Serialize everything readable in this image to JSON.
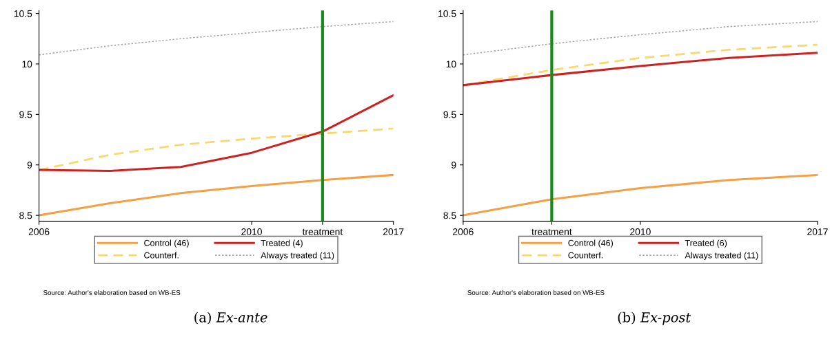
{
  "chart_data": [
    {
      "type": "line",
      "categories": [
        "2006",
        null,
        null,
        "2010",
        "treatment",
        "2017"
      ],
      "ylim": [
        8.44,
        10.53
      ],
      "yticks": [
        8.5,
        9,
        9.5,
        10,
        10.5
      ],
      "grid": false,
      "legend": "bottom",
      "ref_lines": [
        {
          "axis": "x",
          "value": "treatment",
          "label": null,
          "color": "#1a8a1a"
        }
      ],
      "series": [
        {
          "name": "Control (46)",
          "color": "#f5a045",
          "line_style": "solid",
          "values": [
            8.5,
            8.62,
            8.72,
            8.79,
            8.85,
            8.9
          ]
        },
        {
          "name": "Counterf.",
          "color": "#f9d870",
          "line_style": "dashed",
          "values": [
            8.95,
            9.1,
            9.2,
            9.26,
            9.31,
            9.36
          ]
        },
        {
          "name": "Treated (4)",
          "color": "#cc2222",
          "line_style": "solid",
          "values": [
            8.95,
            8.94,
            8.98,
            9.12,
            9.33,
            9.69
          ]
        },
        {
          "name": "Always treated (11)",
          "color": "#aaaaaa",
          "line_style": "dotted",
          "values": [
            10.09,
            10.18,
            10.25,
            10.31,
            10.37,
            10.42
          ]
        }
      ],
      "annotations": [
        "Source: Author's elaboration based on WB-ES",
        "(a) Ex-ante"
      ]
    },
    {
      "type": "line",
      "categories": [
        "2006",
        "treatment",
        "2010",
        null,
        "2017"
      ],
      "ylim": [
        8.44,
        10.53
      ],
      "yticks": [
        8.5,
        9,
        9.5,
        10,
        10.5
      ],
      "grid": false,
      "legend": "bottom",
      "ref_lines": [
        {
          "axis": "x",
          "value": "treatment",
          "label": null,
          "color": "#1a8a1a"
        }
      ],
      "series": [
        {
          "name": "Control (46)",
          "color": "#f5a045",
          "line_style": "solid",
          "values": [
            8.5,
            8.66,
            8.77,
            8.85,
            8.9
          ]
        },
        {
          "name": "Counterf.",
          "color": "#f9d870",
          "line_style": "dashed",
          "values": [
            9.79,
            9.94,
            10.06,
            10.14,
            10.19
          ]
        },
        {
          "name": "Treated (6)",
          "color": "#cc2222",
          "line_style": "solid",
          "values": [
            9.79,
            9.89,
            9.98,
            10.06,
            10.11
          ]
        },
        {
          "name": "Always treated (11)",
          "color": "#aaaaaa",
          "line_style": "dotted",
          "values": [
            10.09,
            10.2,
            10.29,
            10.37,
            10.42
          ]
        }
      ],
      "annotations": [
        "Source: Author's elaboration based on WB-ES",
        "(b) Ex-post"
      ]
    }
  ]
}
